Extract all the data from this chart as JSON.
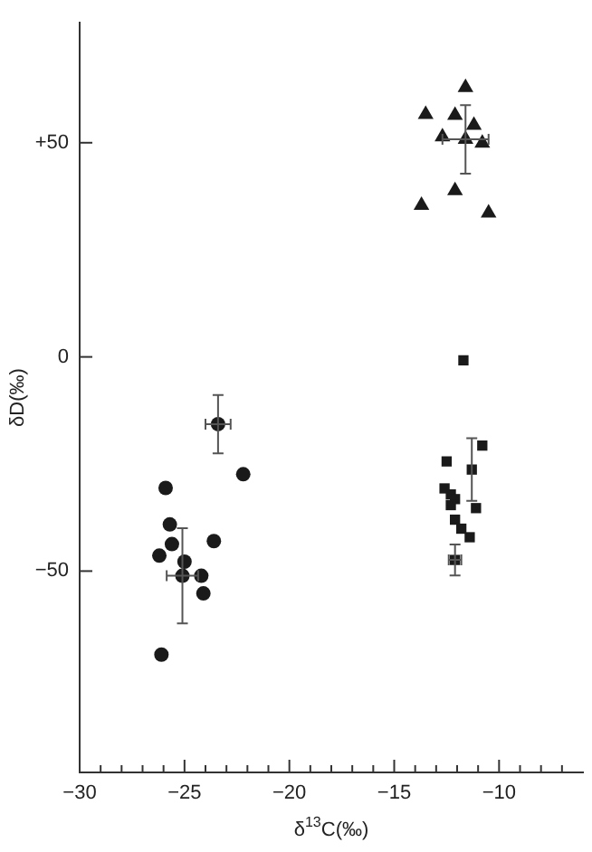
{
  "chart_data": {
    "type": "scatter",
    "xlabel": "δ$^{13}$C(‰)",
    "ylabel": "δD(‰)",
    "xlim": [
      -30,
      -6
    ],
    "ylim": [
      -97,
      78
    ],
    "xticks": [
      {
        "value": -30,
        "label": "−30"
      },
      {
        "value": -29,
        "label": null
      },
      {
        "value": -28,
        "label": null
      },
      {
        "value": -27,
        "label": null
      },
      {
        "value": -26,
        "label": null
      },
      {
        "value": -25,
        "label": "−25"
      },
      {
        "value": -24,
        "label": null
      },
      {
        "value": -23,
        "label": null
      },
      {
        "value": -22,
        "label": null
      },
      {
        "value": -21,
        "label": null
      },
      {
        "value": -20,
        "label": "−20"
      },
      {
        "value": -19,
        "label": null
      },
      {
        "value": -18,
        "label": null
      },
      {
        "value": -17,
        "label": null
      },
      {
        "value": -16,
        "label": null
      },
      {
        "value": -15,
        "label": "−15"
      },
      {
        "value": -14,
        "label": null
      },
      {
        "value": -13,
        "label": null
      },
      {
        "value": -12,
        "label": null
      },
      {
        "value": -11,
        "label": null
      },
      {
        "value": -10,
        "label": "−10"
      },
      {
        "value": -9,
        "label": null
      },
      {
        "value": -8,
        "label": null
      },
      {
        "value": -7,
        "label": null
      }
    ],
    "yticks": [
      {
        "value": -50,
        "label": "−50"
      },
      0,
      {
        "value": 50,
        "label": "+50"
      }
    ],
    "grid": false,
    "legend": false,
    "series": [
      {
        "color": "#1a1a1a",
        "marker": "triangle",
        "x": [
          -11.6,
          -13.5,
          -12.1,
          -11.2,
          -12.7,
          -11.6,
          -10.8,
          -12.1,
          -13.7,
          -10.5
        ],
        "values": [
          62.9,
          56.6,
          56.4,
          54.1,
          51.4,
          50.8,
          49.9,
          38.8,
          35.4,
          33.6
        ],
        "errors": [
          null,
          null,
          null,
          null,
          null,
          8,
          null,
          null,
          null,
          null
        ],
        "xerrors": [
          null,
          null,
          null,
          null,
          null,
          1.1,
          null,
          null,
          null,
          null
        ]
      },
      {
        "color": "#1a1a1a",
        "marker": "square",
        "x": [
          -11.7,
          -10.8,
          -12.5,
          -11.3,
          -12.6,
          -12.3,
          -12.1,
          -12.3,
          -11.1,
          -12.1,
          -11.8,
          -11.4,
          -12.1
        ],
        "values": [
          -0.8,
          -20.7,
          -24.4,
          -26.3,
          -30.7,
          -32.1,
          -33.2,
          -34.6,
          -35.3,
          -38.0,
          -40.1,
          -42.1,
          -47.4
        ],
        "errors": [
          null,
          null,
          null,
          7.3,
          null,
          null,
          null,
          null,
          null,
          null,
          null,
          null,
          3.6
        ],
        "xerrors": [
          null,
          null,
          null,
          null,
          null,
          null,
          null,
          null,
          null,
          null,
          null,
          null,
          0.3
        ]
      },
      {
        "color": "#1a1a1a",
        "marker": "circle",
        "x": [
          -23.4,
          -22.2,
          -25.9,
          -25.7,
          -25.6,
          -23.6,
          -26.2,
          -25.0,
          -25.1,
          -24.2,
          -24.1,
          -26.1
        ],
        "values": [
          -15.7,
          -27.4,
          -30.6,
          -39.1,
          -43.7,
          -43.0,
          -46.4,
          -47.8,
          -51.1,
          -51.1,
          -55.2,
          -69.5
        ],
        "errors": [
          6.8,
          null,
          null,
          null,
          null,
          null,
          null,
          null,
          11.1,
          null,
          null,
          null
        ],
        "xerrors": [
          0.6,
          null,
          null,
          null,
          null,
          null,
          null,
          null,
          0.75,
          null,
          null,
          null
        ]
      }
    ]
  }
}
